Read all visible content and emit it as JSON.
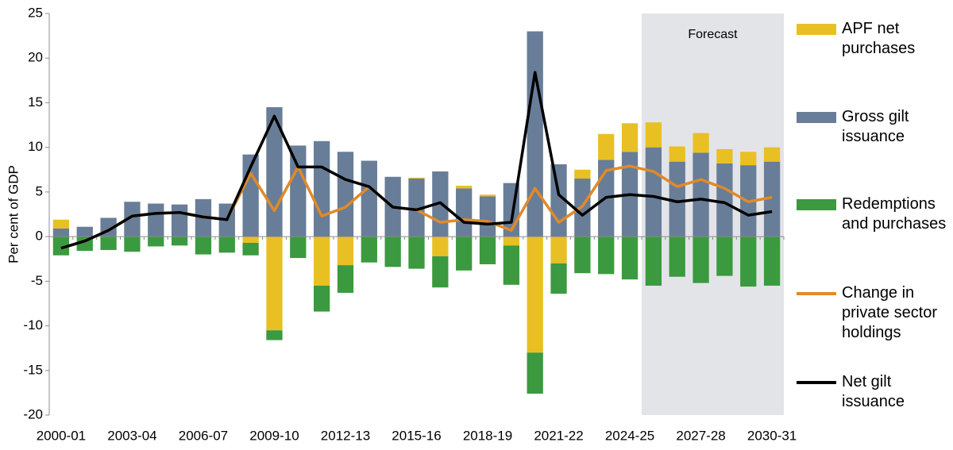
{
  "chart_data": {
    "type": "bar",
    "y_label": "Per cent of GDP",
    "annotation": "Forecast",
    "categories": [
      "2000-01",
      null,
      null,
      "2003-04",
      null,
      null,
      "2006-07",
      null,
      null,
      "2009-10",
      null,
      null,
      "2012-13",
      null,
      null,
      "2015-16",
      null,
      null,
      "2018-19",
      null,
      null,
      "2021-22",
      null,
      null,
      "2024-25",
      null,
      null,
      "2027-28",
      null,
      null,
      "2030-31"
    ],
    "ylim": [
      -20,
      25
    ],
    "yticks": [
      -20,
      -15,
      -10,
      -5,
      0,
      5,
      10,
      15,
      20,
      25
    ],
    "series": [
      {
        "name": "APF net purchases",
        "type": "bar",
        "color": "#e8c024",
        "values": [
          1.0,
          0,
          0,
          0,
          0,
          0,
          0,
          0,
          -0.7,
          -10.5,
          0,
          -5.5,
          -3.2,
          0,
          0,
          0.1,
          -2.2,
          0.3,
          0.2,
          -1.0,
          -13.0,
          -3.0,
          1.0,
          2.9,
          3.2,
          2.8,
          1.7,
          2.2,
          1.6,
          1.5,
          1.6
        ]
      },
      {
        "name": "Gross gilt issuance",
        "type": "bar",
        "color": "#687d98",
        "values": [
          0.9,
          1.1,
          2.1,
          3.9,
          3.7,
          3.6,
          4.2,
          3.7,
          9.2,
          14.5,
          10.2,
          10.7,
          9.5,
          8.5,
          6.7,
          6.5,
          7.3,
          5.4,
          4.5,
          6.0,
          23.0,
          8.1,
          6.5,
          8.6,
          9.5,
          10.0,
          8.4,
          9.4,
          8.2,
          8.0,
          8.4
        ]
      },
      {
        "name": "Redemptions and purchases",
        "type": "bar",
        "color": "#3b9a3f",
        "values": [
          -2.1,
          -1.6,
          -1.5,
          -1.7,
          -1.1,
          -1.0,
          -2.0,
          -1.8,
          -1.4,
          -1.1,
          -2.4,
          -2.9,
          -3.1,
          -2.9,
          -3.4,
          -3.6,
          -3.5,
          -3.8,
          -3.1,
          -4.4,
          -4.6,
          -3.4,
          -4.1,
          -4.2,
          -4.8,
          -5.5,
          -4.5,
          -5.2,
          -4.4,
          -5.6,
          -5.5
        ]
      },
      {
        "name": "Change in private sector holdings",
        "type": "line",
        "color": "#e08a2a",
        "values": [
          -1.3,
          -0.5,
          0.7,
          2.3,
          2.6,
          2.7,
          2.2,
          1.9,
          7.1,
          2.9,
          7.8,
          2.3,
          3.3,
          5.6,
          3.3,
          3.0,
          1.6,
          1.9,
          1.7,
          0.7,
          5.4,
          1.6,
          3.4,
          7.4,
          7.9,
          7.3,
          5.6,
          6.4,
          5.4,
          3.9,
          4.4
        ]
      },
      {
        "name": "Net gilt issuance",
        "type": "line",
        "color": "#000000",
        "values": [
          -1.3,
          -0.5,
          0.7,
          2.3,
          2.6,
          2.7,
          2.2,
          1.9,
          7.8,
          13.5,
          7.8,
          7.8,
          6.4,
          5.6,
          3.3,
          3.0,
          3.8,
          1.6,
          1.4,
          1.6,
          18.4,
          4.7,
          2.4,
          4.4,
          4.7,
          4.5,
          3.9,
          4.2,
          3.8,
          2.4,
          2.8
        ]
      }
    ]
  }
}
